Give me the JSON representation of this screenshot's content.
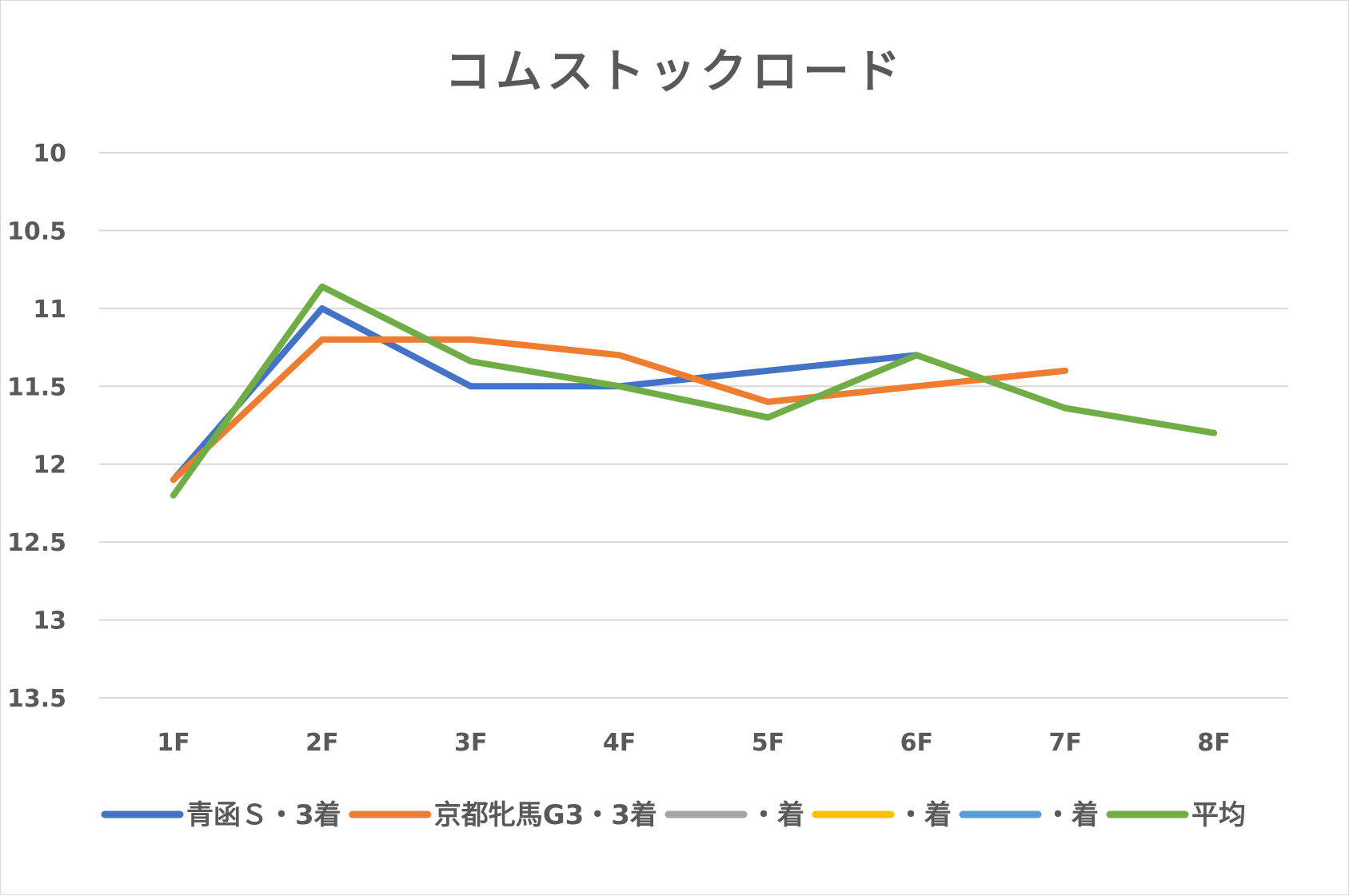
{
  "chart_data": {
    "type": "line",
    "title": "コムストックロード",
    "categories": [
      "1F",
      "2F",
      "3F",
      "4F",
      "5F",
      "6F",
      "7F",
      "8F"
    ],
    "y_tick_labels": [
      "10",
      "10.5",
      "11",
      "11.5",
      "12",
      "12.5",
      "13",
      "13.5"
    ],
    "ylim": [
      10,
      13.5
    ],
    "y_reversed": true,
    "grid": true,
    "legend_position": "bottom",
    "series": [
      {
        "name": "青函Ｓ・3着",
        "color": "#4472C4",
        "values": [
          12.1,
          11.0,
          11.5,
          11.5,
          11.4,
          11.3,
          null,
          null
        ]
      },
      {
        "name": "京都牝馬G3・3着",
        "color": "#ED7D31",
        "values": [
          12.1,
          11.2,
          11.2,
          11.3,
          11.6,
          11.5,
          11.4,
          null
        ]
      },
      {
        "name": "・着",
        "color": "#A5A5A5",
        "values": [
          null,
          null,
          null,
          null,
          null,
          null,
          null,
          null
        ]
      },
      {
        "name": "・着",
        "color": "#FFC000",
        "values": [
          null,
          null,
          null,
          null,
          null,
          null,
          null,
          null
        ]
      },
      {
        "name": "・着",
        "color": "#5B9BD5",
        "values": [
          null,
          null,
          null,
          null,
          null,
          null,
          null,
          null
        ]
      },
      {
        "name": "平均",
        "color": "#70AD47",
        "values": [
          12.2,
          10.86,
          11.34,
          11.5,
          11.7,
          11.3,
          11.64,
          11.8
        ]
      }
    ]
  }
}
